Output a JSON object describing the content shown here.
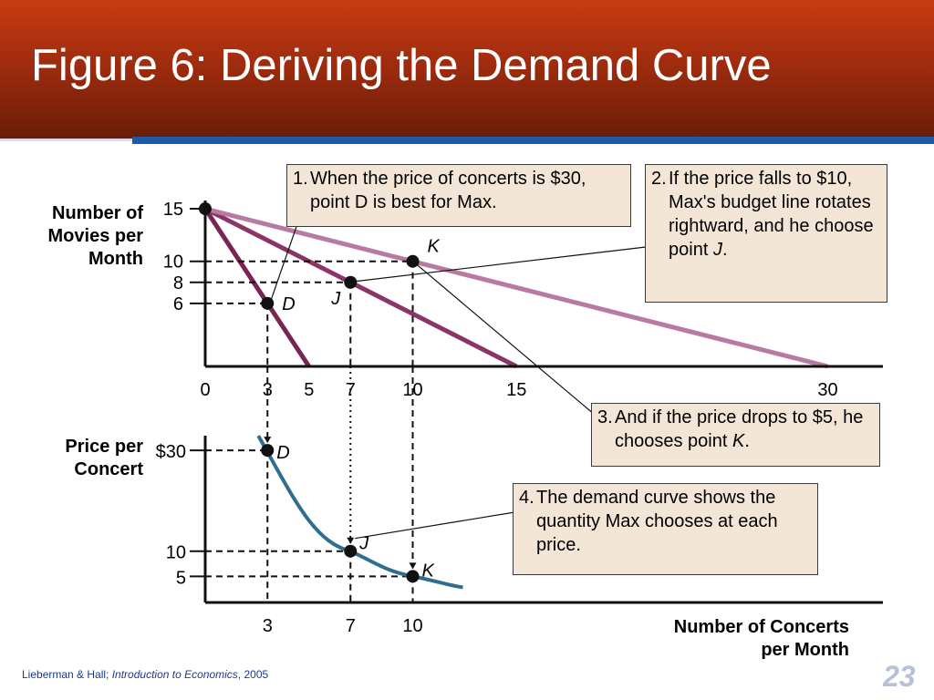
{
  "slide": {
    "title": "Figure 6:  Deriving the Demand Curve",
    "credit_authors": "Lieberman & Hall; ",
    "credit_book": "Introduction to Economics",
    "credit_year": ", 2005",
    "page_number": "23"
  },
  "callouts": [
    {
      "num": "1.",
      "text": "When the price of concerts is $30, point D is best for Max."
    },
    {
      "num": "2.",
      "text": "If the price falls to $10, Max's budget line rotates rightward, and he choose point ",
      "italic": "J",
      "tail": "."
    },
    {
      "num": "3.",
      "text": "And if the price drops to $5, he chooses point ",
      "italic": "K",
      "tail": "."
    },
    {
      "num": "4.",
      "text": "The demand curve shows the quantity Max chooses at each price."
    }
  ],
  "colors": {
    "header_top": "#c83c12",
    "header_bottom": "#6a1c08",
    "accent_bar": "#1f5aa8",
    "budget_line_30": "#7a2456",
    "budget_line_10": "#8a3568",
    "budget_line_5": "#b87aa2",
    "demand_curve": "#2f6e8e",
    "callout_fill": "#f4e6d6"
  },
  "chart_data": [
    {
      "type": "line",
      "title": "",
      "ylabel": "Number of Movies per Month",
      "xlabel": "",
      "xlim": [
        0,
        31
      ],
      "ylim": [
        0,
        16
      ],
      "x_ticks": [
        0,
        3,
        5,
        7,
        10,
        15,
        30
      ],
      "y_ticks": [
        15,
        10,
        8,
        6
      ],
      "series": [
        {
          "x": [
            0,
            5
          ],
          "y": [
            15,
            0
          ]
        },
        {
          "x": [
            0,
            15
          ],
          "y": [
            15,
            0
          ]
        },
        {
          "x": [
            0,
            30
          ],
          "y": [
            15,
            0
          ]
        }
      ],
      "points": [
        {
          "label": "D",
          "x": 3,
          "y": 6
        },
        {
          "label": "J",
          "x": 7,
          "y": 8
        },
        {
          "label": "K",
          "x": 10,
          "y": 10
        }
      ],
      "intercept_point": {
        "x": 0,
        "y": 15
      }
    },
    {
      "type": "line",
      "title": "",
      "ylabel": "Price per Concert",
      "xlabel": "Number of Concerts per Month",
      "xlim": [
        0,
        10
      ],
      "ylim": [
        0,
        36
      ],
      "x_ticks": [
        3,
        7,
        10
      ],
      "y_ticks": [
        {
          "value": 30,
          "label": "$30"
        },
        {
          "value": 10,
          "label": "10"
        },
        {
          "value": 5,
          "label": "5"
        }
      ],
      "series": [
        {
          "x": [
            3,
            7,
            10
          ],
          "y": [
            30,
            10,
            5
          ]
        }
      ],
      "points": [
        {
          "label": "D",
          "x": 3,
          "y": 30
        },
        {
          "label": "J",
          "x": 7,
          "y": 10
        },
        {
          "label": "K",
          "x": 10,
          "y": 5
        }
      ]
    }
  ]
}
